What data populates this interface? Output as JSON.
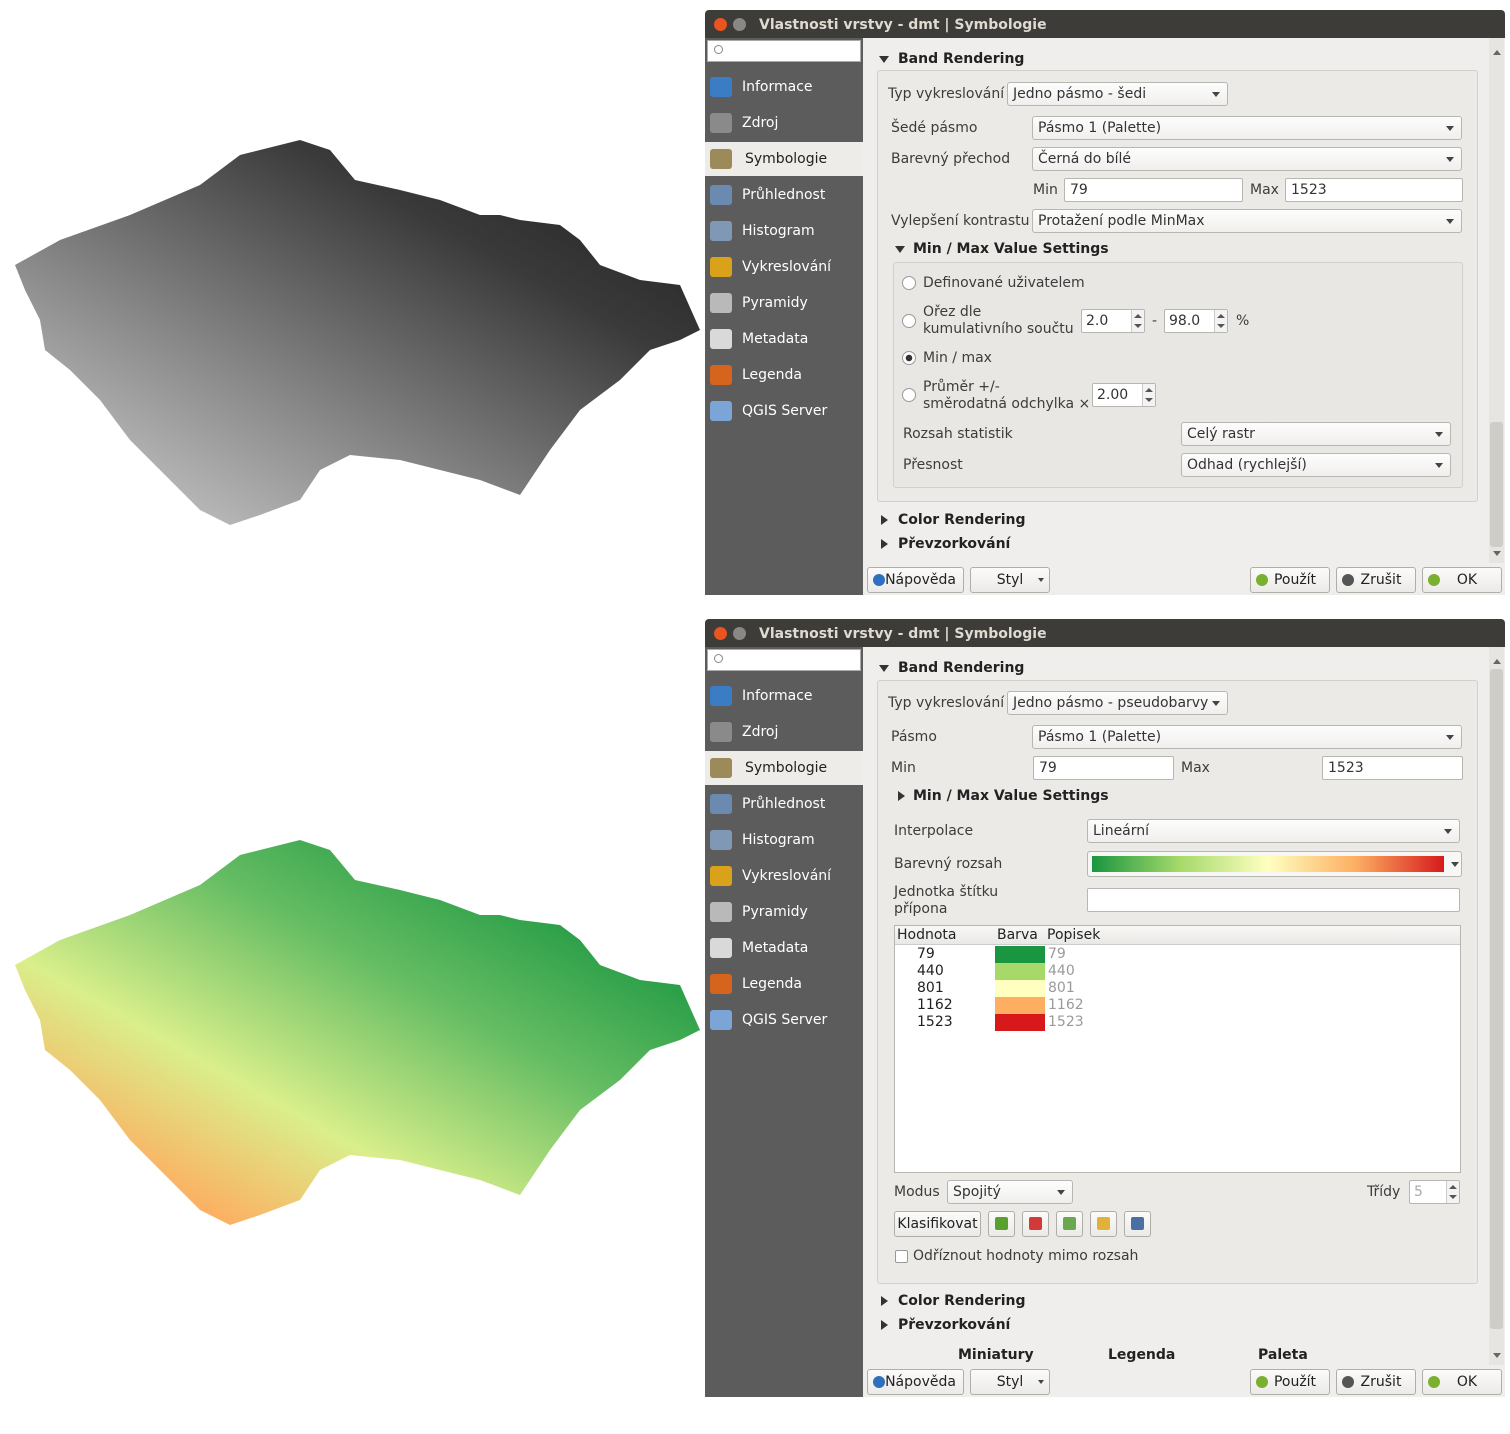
{
  "dialogs": [
    {
      "title": "Vlastnosti vrstvy - dmt | Symbologie",
      "sidebar": [
        "Informace",
        "Zdroj",
        "Symbologie",
        "Průhlednost",
        "Histogram",
        "Vykreslování",
        "Pyramidy",
        "Metadata",
        "Legenda",
        "QGIS Server"
      ],
      "sidebar_selected": 2,
      "band_rendering": "Band Rendering",
      "render_type": {
        "label": "Typ vykreslování",
        "value": "Jedno pásmo - šedi"
      },
      "gray_band": {
        "label": "Šedé pásmo",
        "value": "Pásmo 1 (Palette)"
      },
      "gradient": {
        "label": "Barevný přechod",
        "value": "Černá do bílé"
      },
      "min": {
        "label": "Min",
        "value": "79"
      },
      "max": {
        "label": "Max",
        "value": "1523"
      },
      "contrast": {
        "label": "Vylepšení kontrastu",
        "value": "Protažení podle MinMax"
      },
      "minmax_settings": "Min / Max Value Settings",
      "options": [
        [
          "Definované uživatelem"
        ],
        [
          "Ořez dle",
          "kumulativního součtu"
        ],
        [
          "Min / max"
        ],
        [
          "Průměr +/-",
          "směrodatná odchylka ×"
        ]
      ],
      "option_checked": 2,
      "cumulative": {
        "from": "2.0",
        "separator": "-",
        "to": "98.0",
        "unit": "%"
      },
      "stddev": "2.00",
      "stats_extent": {
        "label": "Rozsah statistik",
        "value": "Celý rastr"
      },
      "accuracy": {
        "label": "Přesnost",
        "value": "Odhad (rychlejší)"
      },
      "collapsed": [
        "Color Rendering",
        "Převzorkování"
      ],
      "buttons": {
        "help": "Nápověda",
        "style": "Styl",
        "apply": "Použít",
        "cancel": "Zrušit",
        "ok": "OK"
      }
    },
    {
      "title": "Vlastnosti vrstvy - dmt | Symbologie",
      "sidebar": [
        "Informace",
        "Zdroj",
        "Symbologie",
        "Průhlednost",
        "Histogram",
        "Vykreslování",
        "Pyramidy",
        "Metadata",
        "Legenda",
        "QGIS Server"
      ],
      "sidebar_selected": 2,
      "band_rendering": "Band Rendering",
      "render_type": {
        "label": "Typ vykreslování",
        "value": "Jedno pásmo - pseudobarvy"
      },
      "band": {
        "label": "Pásmo",
        "value": "Pásmo 1 (Palette)"
      },
      "min": {
        "label": "Min",
        "value": "79"
      },
      "max": {
        "label": "Max",
        "value": "1523"
      },
      "minmax_settings": "Min / Max Value Settings",
      "interpolation": {
        "label": "Interpolace",
        "value": "Lineární"
      },
      "color_ramp": {
        "label": "Barevný rozsah",
        "colors": [
          "#1a9641",
          "#a6d96a",
          "#ffffc0",
          "#fdae61",
          "#d7191c"
        ]
      },
      "unit_suffix": [
        "Jednotka štítku",
        "přípona"
      ],
      "table": {
        "headers": [
          "Hodnota",
          "Barva",
          "Popisek"
        ],
        "rows": [
          {
            "value": 79,
            "color": "#1a9641",
            "label": "79"
          },
          {
            "value": 440,
            "color": "#a6d96a",
            "label": "440"
          },
          {
            "value": 801,
            "color": "#ffffc0",
            "label": "801"
          },
          {
            "value": 1162,
            "color": "#fdae61",
            "label": "1162"
          },
          {
            "value": 1523,
            "color": "#d7191c",
            "label": "1523"
          }
        ]
      },
      "mode": {
        "label": "Modus",
        "value": "Spojitý"
      },
      "classes": {
        "label": "Třídy",
        "value": 5
      },
      "classify": "Klasifikovat",
      "clip": "Odříznout hodnoty mimo rozsah",
      "collapsed": [
        "Color Rendering",
        "Převzorkování"
      ],
      "tabs": [
        "Miniatury",
        "Legenda",
        "Paleta"
      ],
      "buttons": {
        "help": "Nápověda",
        "style": "Styl",
        "apply": "Použít",
        "cancel": "Zrušit",
        "ok": "OK"
      }
    }
  ]
}
